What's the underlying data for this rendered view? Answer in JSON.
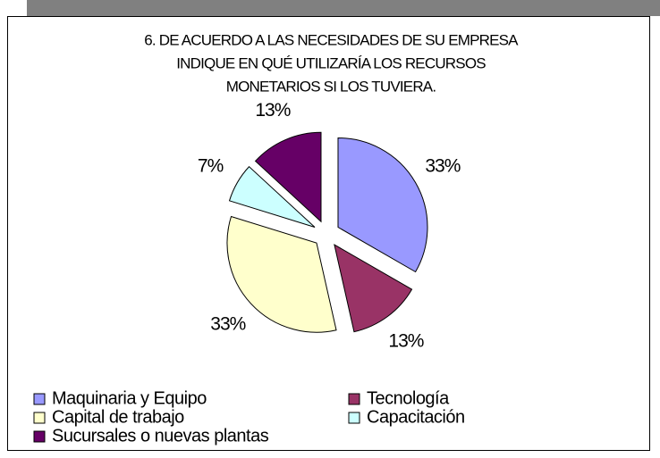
{
  "chart_data": {
    "type": "pie",
    "title": [
      "6. DE ACUERDO A LAS NECESIDADES DE SU EMPRESA",
      "INDIQUE EN QUÉ UTILIZARÍA LOS RECURSOS",
      "MONETARIOS SI LOS TUVIERA."
    ],
    "categories": [
      "Maquinaria y Equipo",
      "Tecnología",
      "Capital de trabajo",
      "Capacitación",
      "Sucursales o nuevas plantas"
    ],
    "values": [
      33,
      13,
      33,
      7,
      13
    ],
    "value_labels": [
      "33%",
      "13%",
      "33%",
      "7%",
      "13%"
    ],
    "colors": [
      "#9999ff",
      "#993366",
      "#ffffcc",
      "#ccffff",
      "#660066"
    ],
    "exploded": true
  }
}
